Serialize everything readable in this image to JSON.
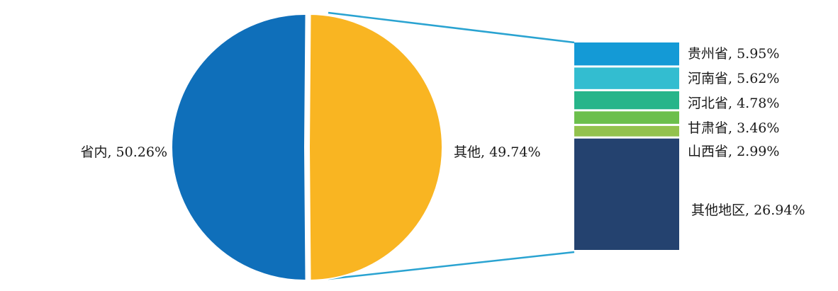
{
  "chart_data": {
    "type": "pie",
    "subtype": "bar-of-pie",
    "pie": [
      {
        "name": "省内",
        "value": 50.26,
        "label": "省内, 50.26%",
        "color": "#0f6fba"
      },
      {
        "name": "其他",
        "value": 49.74,
        "label": "其他, 49.74%",
        "color": "#f9b522"
      }
    ],
    "breakdown_of": "其他",
    "bar": [
      {
        "name": "贵州省",
        "value": 5.95,
        "label": "贵州省, 5.95%",
        "color": "#149ad6"
      },
      {
        "name": "河南省",
        "value": 5.62,
        "label": "河南省, 5.62%",
        "color": "#33bdd0"
      },
      {
        "name": "河北省",
        "value": 4.78,
        "label": "河北省, 4.78%",
        "color": "#27b58a"
      },
      {
        "name": "甘肃省",
        "value": 3.46,
        "label": "甘肃省, 3.46%",
        "color": "#6cbf4c"
      },
      {
        "name": "山西省",
        "value": 2.99,
        "label": "山西省, 2.99%",
        "color": "#93c24d"
      },
      {
        "name": "其他地区",
        "value": 26.94,
        "label": "其他地区, 26.94%",
        "color": "#24426f"
      }
    ],
    "connector_color": "#2aa3d1"
  }
}
